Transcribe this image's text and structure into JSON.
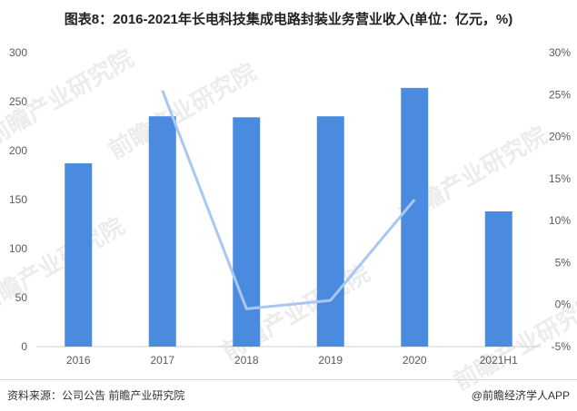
{
  "title": "图表8：2016-2021年长电科技集成电路封装业务营业收入(单位：亿元，%)",
  "colors": {
    "bar": "#4a8be0",
    "line": "#a8c8f0"
  },
  "watermark": "前瞻产业研究院",
  "footer": {
    "source": "资料来源：公司公告  前瞻产业研究院",
    "brand": "@前瞻经济学人APP"
  },
  "chart_data": {
    "type": "bar",
    "categories": [
      "2016",
      "2017",
      "2018",
      "2019",
      "2020",
      "2021H1"
    ],
    "series": [
      {
        "type": "bar",
        "axis": "left",
        "values": [
          187,
          235,
          234,
          235,
          264,
          138
        ]
      },
      {
        "type": "line",
        "axis": "right",
        "values": [
          null,
          25.5,
          -0.5,
          0.5,
          12.5,
          null
        ]
      }
    ],
    "y_left": {
      "min": 0,
      "max": 300,
      "ticks": [
        "0",
        "50",
        "100",
        "150",
        "200",
        "250",
        "300"
      ]
    },
    "y_right": {
      "min": -5,
      "max": 30,
      "ticks": [
        "-5%",
        "0%",
        "5%",
        "10%",
        "15%",
        "20%",
        "25%",
        "30%"
      ]
    },
    "grid": false,
    "legend": "none"
  }
}
